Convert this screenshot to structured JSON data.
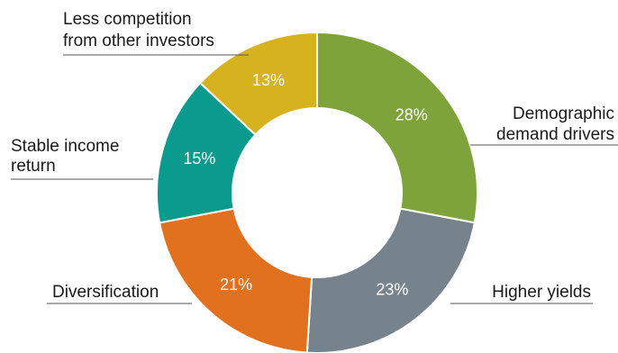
{
  "chart_data": {
    "type": "pie",
    "categories": [
      "Demographic demand drivers",
      "Higher yields",
      "Diversification",
      "Stable income return",
      "Less competition from other investors"
    ],
    "values": [
      28,
      23,
      21,
      15,
      13
    ],
    "value_labels": [
      "28%",
      "23%",
      "21%",
      "15%",
      "13%"
    ],
    "colors": [
      "#7da33a",
      "#76838d",
      "#e2711f",
      "#0b9b8e",
      "#d7b21f"
    ],
    "labels": {
      "demographic": [
        "Demographic",
        "demand drivers"
      ],
      "higher_yields": [
        "Higher yields"
      ],
      "diversification": [
        "Diversification"
      ],
      "stable_income": [
        "Stable income",
        "return"
      ],
      "less_competition": [
        "Less competition",
        "from other investors"
      ]
    },
    "donut": true,
    "legend": "none"
  }
}
